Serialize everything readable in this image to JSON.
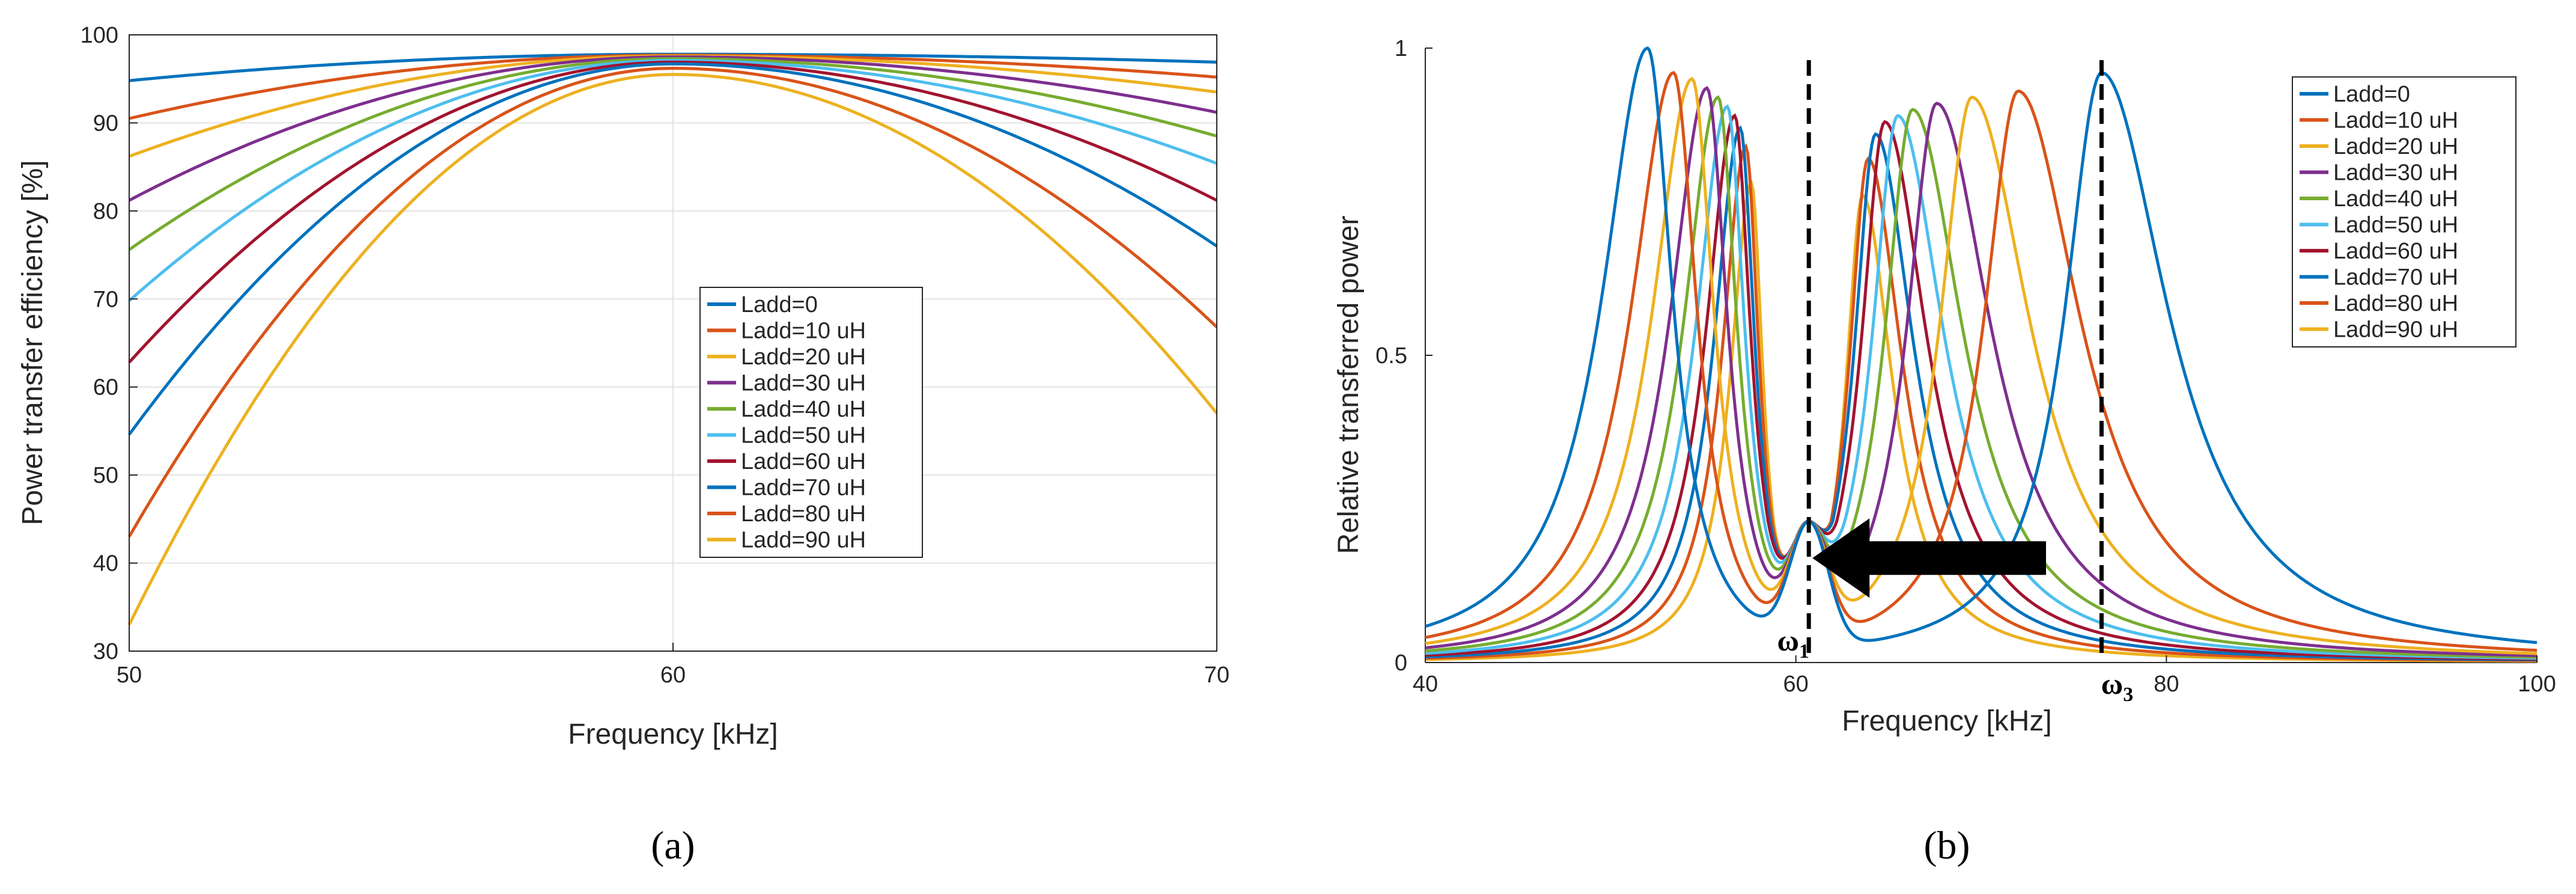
{
  "colors": [
    "#0072BD",
    "#D95319",
    "#EDB120",
    "#7E2F8E",
    "#77AC30",
    "#4DBEEE",
    "#A2142F",
    "#0072BD",
    "#D95319",
    "#EDB120"
  ],
  "legend_labels": [
    "Ladd=0",
    "Ladd=10 uH",
    "Ladd=20 uH",
    "Ladd=30 uH",
    "Ladd=40 uH",
    "Ladd=50 uH",
    "Ladd=60 uH",
    "Ladd=70 uH",
    "Ladd=80 uH",
    "Ladd=90 uH"
  ],
  "chart_data": [
    {
      "type": "line",
      "caption": "(a)",
      "xlabel": "Frequency [kHz]",
      "ylabel": "Power transfer efficiency [%]",
      "xlim": [
        50,
        70
      ],
      "ylim": [
        30,
        100
      ],
      "xticks": [
        50,
        60,
        70
      ],
      "yticks": [
        30,
        40,
        50,
        60,
        70,
        80,
        90,
        100
      ],
      "grid": true,
      "legend_position": "lower-center",
      "series": [
        {
          "name": "Ladd=0",
          "x": [
            50,
            60,
            70
          ],
          "y": [
            94.8,
            97.8,
            96.9
          ]
        },
        {
          "name": "Ladd=10 uH",
          "x": [
            50,
            60,
            70
          ],
          "y": [
            90.5,
            97.7,
            95.2
          ]
        },
        {
          "name": "Ladd=20 uH",
          "x": [
            50,
            60,
            70
          ],
          "y": [
            86.2,
            97.6,
            93.5
          ]
        },
        {
          "name": "Ladd=30 uH",
          "x": [
            50,
            60,
            70
          ],
          "y": [
            81.2,
            97.5,
            91.2
          ]
        },
        {
          "name": "Ladd=40 uH",
          "x": [
            50,
            60,
            70
          ],
          "y": [
            75.6,
            97.3,
            88.5
          ]
        },
        {
          "name": "Ladd=50 uH",
          "x": [
            50,
            60,
            70
          ],
          "y": [
            69.8,
            97.1,
            85.4
          ]
        },
        {
          "name": "Ladd=60 uH",
          "x": [
            50,
            60,
            70
          ],
          "y": [
            62.8,
            96.9,
            81.2
          ]
        },
        {
          "name": "Ladd=70 uH",
          "x": [
            50,
            60,
            70
          ],
          "y": [
            54.6,
            96.7,
            76.0
          ]
        },
        {
          "name": "Ladd=80 uH",
          "x": [
            50,
            60,
            70
          ],
          "y": [
            43.0,
            96.2,
            66.8
          ]
        },
        {
          "name": "Ladd=90 uH",
          "x": [
            50,
            60,
            70
          ],
          "y": [
            33.0,
            95.5,
            57.0
          ]
        }
      ]
    },
    {
      "type": "line",
      "caption": "(b)",
      "xlabel": "Frequency [kHz]",
      "ylabel": "Relative transferred power",
      "xlim": [
        40,
        100
      ],
      "ylim": [
        0,
        1
      ],
      "xticks": [
        40,
        60,
        80,
        100
      ],
      "yticks": [
        0,
        0.5,
        1
      ],
      "grid": false,
      "legend_position": "top-right",
      "valley_frequency": 60.7,
      "valley_value": 0.23,
      "series": [
        {
          "name": "Ladd=0",
          "peak_low_freq": 52.0,
          "peak_low": 1.0,
          "peak_high_freq": 76.5,
          "peak_high": 0.96
        },
        {
          "name": "Ladd=10 uH",
          "peak_low_freq": 53.4,
          "peak_low": 0.96,
          "peak_high_freq": 72.0,
          "peak_high": 0.93
        },
        {
          "name": "Ladd=20 uH",
          "peak_low_freq": 54.4,
          "peak_low": 0.95,
          "peak_high_freq": 69.5,
          "peak_high": 0.92
        },
        {
          "name": "Ladd=30 uH",
          "peak_low_freq": 55.2,
          "peak_low": 0.935,
          "peak_high_freq": 67.6,
          "peak_high": 0.91
        },
        {
          "name": "Ladd=40 uH",
          "peak_low_freq": 55.8,
          "peak_low": 0.92,
          "peak_high_freq": 66.3,
          "peak_high": 0.9
        },
        {
          "name": "Ladd=50 uH",
          "peak_low_freq": 56.3,
          "peak_low": 0.905,
          "peak_high_freq": 65.5,
          "peak_high": 0.89
        },
        {
          "name": "Ladd=60 uH",
          "peak_low_freq": 56.7,
          "peak_low": 0.89,
          "peak_high_freq": 64.8,
          "peak_high": 0.88
        },
        {
          "name": "Ladd=70 uH",
          "peak_low_freq": 57.0,
          "peak_low": 0.87,
          "peak_high_freq": 64.3,
          "peak_high": 0.86
        },
        {
          "name": "Ladd=80 uH",
          "peak_low_freq": 57.3,
          "peak_low": 0.84,
          "peak_high_freq": 63.9,
          "peak_high": 0.82
        },
        {
          "name": "Ladd=90 uH",
          "peak_low_freq": 57.6,
          "peak_low": 0.78,
          "peak_high_freq": 63.6,
          "peak_high": 0.76
        }
      ],
      "markers": [
        {
          "label": "ω",
          "subscript": "1",
          "x": 60.7
        },
        {
          "label": "ω",
          "subscript": "3",
          "x": 76.5
        }
      ],
      "annotation": "arrow pointing left from ω3 toward ω1"
    }
  ]
}
